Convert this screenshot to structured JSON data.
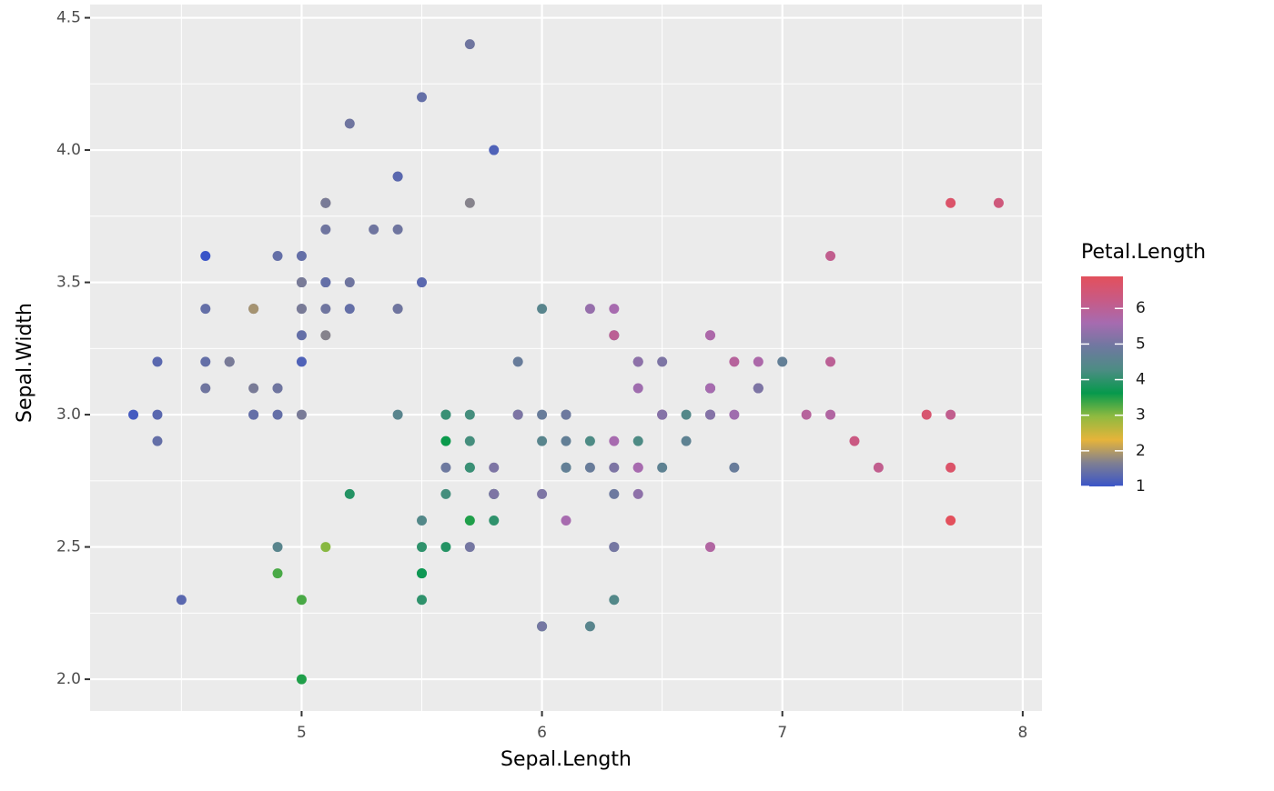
{
  "chart_data": {
    "type": "scatter",
    "x_label": "Sepal.Length",
    "y_label": "Sepal.Width",
    "legend_title": "Petal.Length",
    "x": [
      5.1,
      4.9,
      4.7,
      4.6,
      5.0,
      5.4,
      4.6,
      5.0,
      4.4,
      4.9,
      5.4,
      4.8,
      4.8,
      4.3,
      5.8,
      5.7,
      5.4,
      5.1,
      5.7,
      5.1,
      5.4,
      5.1,
      4.6,
      5.1,
      4.8,
      5.0,
      5.0,
      5.2,
      5.2,
      4.7,
      4.8,
      5.4,
      5.2,
      5.5,
      4.9,
      5.0,
      5.5,
      4.9,
      4.4,
      5.1,
      5.0,
      4.5,
      4.4,
      5.0,
      5.1,
      4.8,
      5.1,
      4.6,
      5.3,
      5.0,
      7.0,
      6.4,
      6.9,
      5.5,
      6.5,
      5.7,
      6.3,
      4.9,
      6.6,
      5.2,
      5.0,
      5.9,
      6.0,
      6.1,
      5.6,
      6.7,
      5.6,
      5.8,
      6.2,
      5.6,
      5.9,
      6.1,
      6.3,
      6.1,
      6.4,
      6.6,
      6.8,
      6.7,
      6.0,
      5.7,
      5.5,
      5.5,
      5.8,
      6.0,
      5.4,
      6.0,
      6.7,
      6.3,
      5.6,
      5.5,
      5.5,
      6.1,
      5.8,
      5.0,
      5.6,
      5.7,
      5.7,
      6.2,
      5.1,
      5.7,
      6.3,
      5.8,
      7.1,
      6.3,
      6.5,
      7.6,
      4.9,
      7.3,
      6.7,
      7.2,
      6.5,
      6.4,
      6.8,
      5.7,
      5.8,
      6.4,
      6.5,
      7.7,
      7.7,
      6.0,
      6.9,
      5.6,
      7.7,
      6.3,
      6.7,
      7.2,
      6.2,
      6.1,
      6.4,
      7.2,
      7.4,
      7.9,
      6.4,
      6.3,
      6.1,
      7.7,
      6.3,
      6.4,
      6.0,
      6.9,
      6.7,
      6.9,
      5.8,
      6.8,
      6.7,
      6.7,
      6.3,
      6.5,
      6.2,
      5.9
    ],
    "y": [
      3.5,
      3.0,
      3.2,
      3.1,
      3.6,
      3.9,
      3.4,
      3.4,
      2.9,
      3.1,
      3.7,
      3.4,
      3.0,
      3.0,
      4.0,
      4.4,
      3.9,
      3.5,
      3.8,
      3.8,
      3.4,
      3.7,
      3.6,
      3.3,
      3.4,
      3.0,
      3.4,
      3.5,
      3.4,
      3.2,
      3.1,
      3.4,
      4.1,
      4.2,
      3.1,
      3.2,
      3.5,
      3.6,
      3.0,
      3.4,
      3.5,
      2.3,
      3.2,
      3.5,
      3.8,
      3.0,
      3.8,
      3.2,
      3.7,
      3.3,
      3.2,
      3.2,
      3.1,
      2.3,
      2.8,
      2.8,
      3.3,
      2.4,
      2.9,
      2.7,
      2.0,
      3.0,
      2.2,
      2.9,
      2.9,
      3.1,
      3.0,
      2.7,
      2.2,
      2.5,
      3.2,
      2.8,
      2.5,
      2.8,
      2.9,
      3.0,
      2.8,
      3.0,
      2.9,
      2.6,
      2.4,
      2.4,
      2.7,
      2.7,
      3.0,
      3.4,
      3.1,
      2.3,
      3.0,
      2.5,
      2.6,
      3.0,
      2.6,
      2.3,
      2.7,
      3.0,
      2.9,
      2.9,
      2.5,
      2.8,
      3.3,
      2.7,
      3.0,
      2.9,
      3.0,
      3.0,
      2.5,
      2.9,
      2.5,
      3.6,
      3.2,
      2.7,
      3.0,
      2.5,
      2.8,
      3.2,
      3.0,
      3.8,
      2.6,
      2.2,
      3.2,
      2.8,
      2.8,
      2.7,
      3.3,
      3.2,
      2.8,
      3.0,
      2.8,
      3.0,
      2.8,
      3.8,
      2.8,
      2.8,
      2.6,
      3.0,
      3.4,
      3.1,
      3.0,
      3.1,
      3.1,
      3.1,
      2.7,
      3.2,
      3.3,
      3.0,
      2.5,
      3.0,
      3.4,
      3.0
    ],
    "color_values": [
      1.4,
      1.4,
      1.3,
      1.5,
      1.4,
      1.7,
      1.4,
      1.5,
      1.4,
      1.5,
      1.5,
      1.6,
      1.4,
      1.1,
      1.2,
      1.5,
      1.3,
      1.4,
      1.7,
      1.5,
      1.7,
      1.5,
      1.0,
      1.7,
      1.9,
      1.6,
      1.6,
      1.5,
      1.4,
      1.6,
      1.6,
      1.5,
      1.5,
      1.4,
      1.5,
      1.2,
      1.3,
      1.4,
      1.3,
      1.5,
      1.3,
      1.3,
      1.3,
      1.6,
      1.9,
      1.4,
      1.6,
      1.4,
      1.5,
      1.4,
      4.7,
      4.5,
      4.9,
      4.0,
      4.6,
      4.5,
      4.7,
      3.3,
      4.6,
      3.9,
      3.5,
      4.2,
      4.0,
      4.7,
      3.6,
      4.4,
      4.5,
      4.1,
      4.5,
      3.9,
      4.8,
      4.0,
      4.9,
      4.7,
      4.3,
      4.4,
      4.8,
      5.0,
      4.5,
      3.5,
      3.8,
      3.7,
      3.9,
      5.1,
      4.5,
      4.5,
      4.7,
      4.4,
      4.1,
      4.0,
      4.4,
      4.6,
      4.0,
      3.3,
      4.2,
      4.2,
      4.2,
      4.3,
      3.0,
      4.1,
      6.0,
      5.1,
      5.9,
      5.6,
      5.8,
      6.6,
      4.5,
      6.3,
      5.8,
      6.1,
      5.1,
      5.3,
      5.5,
      5.0,
      5.1,
      5.3,
      5.5,
      6.7,
      6.9,
      5.0,
      5.7,
      4.9,
      6.7,
      4.9,
      5.7,
      6.0,
      4.8,
      4.9,
      5.6,
      5.8,
      6.1,
      6.4,
      5.6,
      5.1,
      5.6,
      6.1,
      5.6,
      5.5,
      4.8,
      5.4,
      5.6,
      5.1,
      5.1,
      5.9,
      5.7,
      5.2,
      5.0,
      5.2,
      5.4,
      5.1
    ],
    "xlim": [
      4.12,
      8.08
    ],
    "xticks": [
      5,
      6,
      7,
      8
    ],
    "ylim": [
      1.88,
      4.55
    ],
    "yticks": [
      {
        "value": 2,
        "label": "2.0"
      },
      2.5,
      {
        "value": 3,
        "label": "3.0"
      },
      3.5,
      {
        "value": 4,
        "label": "4.0"
      },
      4.5
    ],
    "colorlim": [
      1,
      6.9
    ],
    "colorticks": [
      1,
      2,
      3,
      4,
      5,
      6
    ],
    "colors": [
      "#3a55c8",
      "#7f7f92",
      "#e6b43a",
      "#8fba40",
      "#06994c",
      "#4d8c84",
      "#6f78a0",
      "#a66bb0",
      "#c85a85",
      "#e3505c"
    ],
    "grid": true,
    "legend_position": "right"
  }
}
